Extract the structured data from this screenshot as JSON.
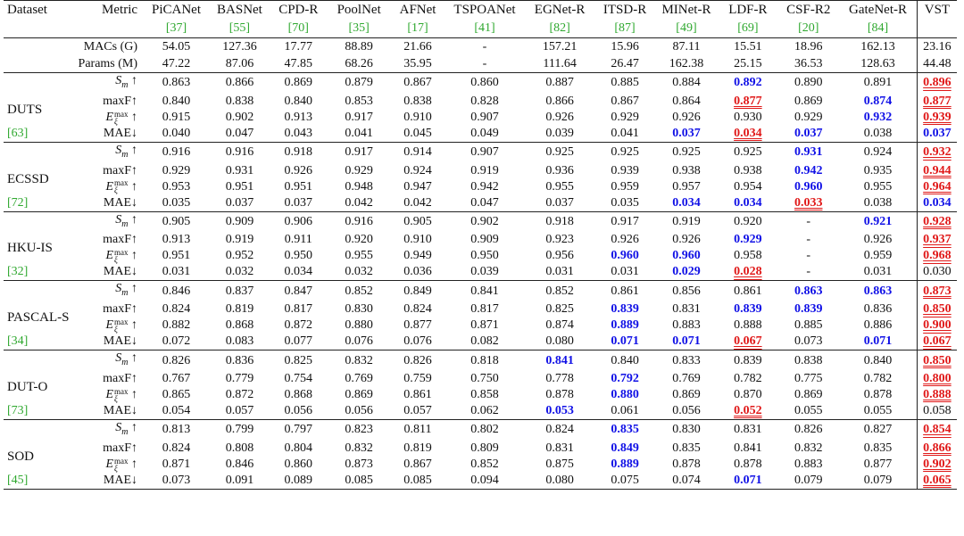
{
  "header": {
    "dataset_label": "Dataset",
    "metric_label": "Metric",
    "methods": [
      {
        "name": "PiCANet",
        "ref": "[37]"
      },
      {
        "name": "BASNet",
        "ref": "[55]"
      },
      {
        "name": "CPD-R",
        "ref": "[70]"
      },
      {
        "name": "PoolNet",
        "ref": "[35]"
      },
      {
        "name": "AFNet",
        "ref": "[17]"
      },
      {
        "name": "TSPOANet",
        "ref": "[41]"
      },
      {
        "name": "EGNet-R",
        "ref": "[82]"
      },
      {
        "name": "ITSD-R",
        "ref": "[87]"
      },
      {
        "name": "MINet-R",
        "ref": "[49]"
      },
      {
        "name": "LDF-R",
        "ref": "[69]"
      },
      {
        "name": "CSF-R2",
        "ref": "[20]"
      },
      {
        "name": "GateNet-R",
        "ref": "[84]"
      }
    ],
    "vst_label": "VST"
  },
  "stats": [
    {
      "label": "MACs (G)",
      "values": [
        "54.05",
        "127.36",
        "17.77",
        "88.89",
        "21.66",
        "-",
        "157.21",
        "15.96",
        "87.11",
        "15.51",
        "18.96",
        "162.13"
      ],
      "vst": "23.16"
    },
    {
      "label": "Params (M)",
      "values": [
        "47.22",
        "87.06",
        "47.85",
        "68.26",
        "35.95",
        "-",
        "111.64",
        "26.47",
        "162.38",
        "25.15",
        "36.53",
        "128.63"
      ],
      "vst": "44.48"
    }
  ],
  "colors": {
    "best": "#e01818",
    "second": "#1010e6",
    "cite": "#2fa82f"
  },
  "groups": [
    {
      "name": "DUTS",
      "ref": "[63]",
      "rows": [
        {
          "metric": "sm",
          "values": [
            "0.863",
            "0.866",
            "0.869",
            "0.879",
            "0.867",
            "0.860",
            "0.887",
            "0.885",
            "0.884",
            "0.892",
            "0.890",
            "0.891"
          ],
          "vst": "0.896",
          "marks": {
            "9": "blue"
          },
          "vst_mark": "red"
        },
        {
          "metric": "maxf",
          "values": [
            "0.840",
            "0.838",
            "0.840",
            "0.853",
            "0.838",
            "0.828",
            "0.866",
            "0.867",
            "0.864",
            "0.877",
            "0.869",
            "0.874"
          ],
          "vst": "0.877",
          "marks": {
            "9": "red",
            "11": "blue"
          },
          "vst_mark": "red"
        },
        {
          "metric": "emax",
          "values": [
            "0.915",
            "0.902",
            "0.913",
            "0.917",
            "0.910",
            "0.907",
            "0.926",
            "0.929",
            "0.926",
            "0.930",
            "0.929",
            "0.932"
          ],
          "vst": "0.939",
          "marks": {
            "11": "blue"
          },
          "vst_mark": "red"
        },
        {
          "metric": "mae",
          "values": [
            "0.040",
            "0.047",
            "0.043",
            "0.041",
            "0.045",
            "0.049",
            "0.039",
            "0.041",
            "0.037",
            "0.034",
            "0.037",
            "0.038"
          ],
          "vst": "0.037",
          "marks": {
            "8": "blue",
            "9": "red",
            "10": "blue"
          },
          "vst_mark": "blue"
        }
      ]
    },
    {
      "name": "ECSSD",
      "ref": "[72]",
      "rows": [
        {
          "metric": "sm",
          "values": [
            "0.916",
            "0.916",
            "0.918",
            "0.917",
            "0.914",
            "0.907",
            "0.925",
            "0.925",
            "0.925",
            "0.925",
            "0.931",
            "0.924"
          ],
          "vst": "0.932",
          "marks": {
            "10": "blue"
          },
          "vst_mark": "red"
        },
        {
          "metric": "maxf",
          "values": [
            "0.929",
            "0.931",
            "0.926",
            "0.929",
            "0.924",
            "0.919",
            "0.936",
            "0.939",
            "0.938",
            "0.938",
            "0.942",
            "0.935"
          ],
          "vst": "0.944",
          "marks": {
            "10": "blue"
          },
          "vst_mark": "red"
        },
        {
          "metric": "emax",
          "values": [
            "0.953",
            "0.951",
            "0.951",
            "0.948",
            "0.947",
            "0.942",
            "0.955",
            "0.959",
            "0.957",
            "0.954",
            "0.960",
            "0.955"
          ],
          "vst": "0.964",
          "marks": {
            "10": "blue"
          },
          "vst_mark": "red"
        },
        {
          "metric": "mae",
          "values": [
            "0.035",
            "0.037",
            "0.037",
            "0.042",
            "0.042",
            "0.047",
            "0.037",
            "0.035",
            "0.034",
            "0.034",
            "0.033",
            "0.038"
          ],
          "vst": "0.034",
          "marks": {
            "8": "blue",
            "9": "blue",
            "10": "red"
          },
          "vst_mark": "blue"
        }
      ]
    },
    {
      "name": "HKU-IS",
      "ref": "[32]",
      "rows": [
        {
          "metric": "sm",
          "values": [
            "0.905",
            "0.909",
            "0.906",
            "0.916",
            "0.905",
            "0.902",
            "0.918",
            "0.917",
            "0.919",
            "0.920",
            "-",
            "0.921"
          ],
          "vst": "0.928",
          "marks": {
            "11": "blue"
          },
          "vst_mark": "red"
        },
        {
          "metric": "maxf",
          "values": [
            "0.913",
            "0.919",
            "0.911",
            "0.920",
            "0.910",
            "0.909",
            "0.923",
            "0.926",
            "0.926",
            "0.929",
            "-",
            "0.926"
          ],
          "vst": "0.937",
          "marks": {
            "9": "blue"
          },
          "vst_mark": "red"
        },
        {
          "metric": "emax",
          "values": [
            "0.951",
            "0.952",
            "0.950",
            "0.955",
            "0.949",
            "0.950",
            "0.956",
            "0.960",
            "0.960",
            "0.958",
            "-",
            "0.959"
          ],
          "vst": "0.968",
          "marks": {
            "7": "blue",
            "8": "blue"
          },
          "vst_mark": "red"
        },
        {
          "metric": "mae",
          "values": [
            "0.031",
            "0.032",
            "0.034",
            "0.032",
            "0.036",
            "0.039",
            "0.031",
            "0.031",
            "0.029",
            "0.028",
            "-",
            "0.031"
          ],
          "vst": "0.030",
          "marks": {
            "8": "blue",
            "9": "red"
          },
          "vst_mark": ""
        }
      ]
    },
    {
      "name": "PASCAL-S",
      "ref": "[34]",
      "rows": [
        {
          "metric": "sm",
          "values": [
            "0.846",
            "0.837",
            "0.847",
            "0.852",
            "0.849",
            "0.841",
            "0.852",
            "0.861",
            "0.856",
            "0.861",
            "0.863",
            "0.863"
          ],
          "vst": "0.873",
          "marks": {
            "10": "blue",
            "11": "blue"
          },
          "vst_mark": "red"
        },
        {
          "metric": "maxf",
          "values": [
            "0.824",
            "0.819",
            "0.817",
            "0.830",
            "0.824",
            "0.817",
            "0.825",
            "0.839",
            "0.831",
            "0.839",
            "0.839",
            "0.836"
          ],
          "vst": "0.850",
          "marks": {
            "7": "blue",
            "9": "blue",
            "10": "blue"
          },
          "vst_mark": "red"
        },
        {
          "metric": "emax",
          "values": [
            "0.882",
            "0.868",
            "0.872",
            "0.880",
            "0.877",
            "0.871",
            "0.874",
            "0.889",
            "0.883",
            "0.888",
            "0.885",
            "0.886"
          ],
          "vst": "0.900",
          "marks": {
            "7": "blue"
          },
          "vst_mark": "red"
        },
        {
          "metric": "mae",
          "values": [
            "0.072",
            "0.083",
            "0.077",
            "0.076",
            "0.076",
            "0.082",
            "0.080",
            "0.071",
            "0.071",
            "0.067",
            "0.073",
            "0.071"
          ],
          "vst": "0.067",
          "marks": {
            "7": "blue",
            "8": "blue",
            "9": "red",
            "11": "blue"
          },
          "vst_mark": "red"
        }
      ]
    },
    {
      "name": "DUT-O",
      "ref": "[73]",
      "rows": [
        {
          "metric": "sm",
          "values": [
            "0.826",
            "0.836",
            "0.825",
            "0.832",
            "0.826",
            "0.818",
            "0.841",
            "0.840",
            "0.833",
            "0.839",
            "0.838",
            "0.840"
          ],
          "vst": "0.850",
          "marks": {
            "6": "blue"
          },
          "vst_mark": "red"
        },
        {
          "metric": "maxf",
          "values": [
            "0.767",
            "0.779",
            "0.754",
            "0.769",
            "0.759",
            "0.750",
            "0.778",
            "0.792",
            "0.769",
            "0.782",
            "0.775",
            "0.782"
          ],
          "vst": "0.800",
          "marks": {
            "7": "blue"
          },
          "vst_mark": "red"
        },
        {
          "metric": "emax",
          "values": [
            "0.865",
            "0.872",
            "0.868",
            "0.869",
            "0.861",
            "0.858",
            "0.878",
            "0.880",
            "0.869",
            "0.870",
            "0.869",
            "0.878"
          ],
          "vst": "0.888",
          "marks": {
            "7": "blue"
          },
          "vst_mark": "red"
        },
        {
          "metric": "mae",
          "values": [
            "0.054",
            "0.057",
            "0.056",
            "0.056",
            "0.057",
            "0.062",
            "0.053",
            "0.061",
            "0.056",
            "0.052",
            "0.055",
            "0.055"
          ],
          "vst": "0.058",
          "marks": {
            "6": "blue",
            "9": "red"
          },
          "vst_mark": ""
        }
      ]
    },
    {
      "name": "SOD",
      "ref": "[45]",
      "rows": [
        {
          "metric": "sm",
          "values": [
            "0.813",
            "0.799",
            "0.797",
            "0.823",
            "0.811",
            "0.802",
            "0.824",
            "0.835",
            "0.830",
            "0.831",
            "0.826",
            "0.827"
          ],
          "vst": "0.854",
          "marks": {
            "7": "blue"
          },
          "vst_mark": "red"
        },
        {
          "metric": "maxf",
          "values": [
            "0.824",
            "0.808",
            "0.804",
            "0.832",
            "0.819",
            "0.809",
            "0.831",
            "0.849",
            "0.835",
            "0.841",
            "0.832",
            "0.835"
          ],
          "vst": "0.866",
          "marks": {
            "7": "blue"
          },
          "vst_mark": "red"
        },
        {
          "metric": "emax",
          "values": [
            "0.871",
            "0.846",
            "0.860",
            "0.873",
            "0.867",
            "0.852",
            "0.875",
            "0.889",
            "0.878",
            "0.878",
            "0.883",
            "0.877"
          ],
          "vst": "0.902",
          "marks": {
            "7": "blue"
          },
          "vst_mark": "red"
        },
        {
          "metric": "mae",
          "values": [
            "0.073",
            "0.091",
            "0.089",
            "0.085",
            "0.085",
            "0.094",
            "0.080",
            "0.075",
            "0.074",
            "0.071",
            "0.079",
            "0.079"
          ],
          "vst": "0.065",
          "marks": {
            "9": "blue"
          },
          "vst_mark": "red"
        }
      ]
    }
  ]
}
